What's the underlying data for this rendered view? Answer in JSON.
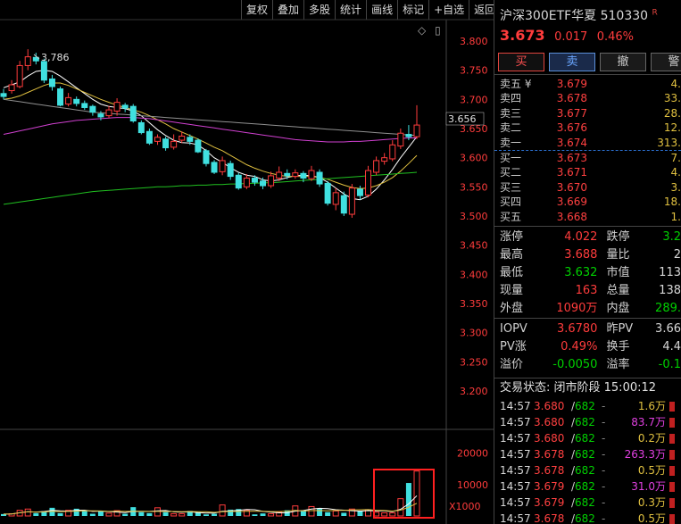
{
  "toolbar": {
    "buttons": [
      "复权",
      "叠加",
      "多股",
      "统计",
      "画线",
      "标记",
      "+自选",
      "返回"
    ]
  },
  "chart_icons": {
    "diamond": "◇",
    "panel": "▯"
  },
  "chart_labels": {
    "high_marker": "3,786",
    "current_price_tag": "3.656",
    "volume_axis_unit": "X1000"
  },
  "chart_data": {
    "type": "candlestick",
    "price_axis": {
      "ticks": [
        "3.800",
        "3.750",
        "3.700",
        "3.650",
        "3.600",
        "3.550",
        "3.500",
        "3.450",
        "3.400",
        "3.350",
        "3.300",
        "3.250",
        "3.200"
      ],
      "ylim": [
        3.2,
        3.8
      ]
    },
    "volume_axis": {
      "ticks": [
        "20000",
        "10000"
      ]
    },
    "candles": [
      {
        "o": 3.71,
        "c": 3.705,
        "h": 3.718,
        "l": 3.7
      },
      {
        "o": 3.715,
        "c": 3.725,
        "h": 3.733,
        "l": 3.71
      },
      {
        "o": 3.722,
        "c": 3.758,
        "h": 3.766,
        "l": 3.719
      },
      {
        "o": 3.758,
        "c": 3.773,
        "h": 3.786,
        "l": 3.75
      },
      {
        "o": 3.772,
        "c": 3.766,
        "h": 3.78,
        "l": 3.76
      },
      {
        "o": 3.765,
        "c": 3.733,
        "h": 3.77,
        "l": 3.728
      },
      {
        "o": 3.735,
        "c": 3.722,
        "h": 3.742,
        "l": 3.715
      },
      {
        "o": 3.718,
        "c": 3.69,
        "h": 3.722,
        "l": 3.688
      },
      {
        "o": 3.692,
        "c": 3.703,
        "h": 3.711,
        "l": 3.688
      },
      {
        "o": 3.7,
        "c": 3.693,
        "h": 3.705,
        "l": 3.688
      },
      {
        "o": 3.693,
        "c": 3.686,
        "h": 3.698,
        "l": 3.682
      },
      {
        "o": 3.688,
        "c": 3.678,
        "h": 3.691,
        "l": 3.672
      },
      {
        "o": 3.675,
        "c": 3.67,
        "h": 3.68,
        "l": 3.664
      },
      {
        "o": 3.672,
        "c": 3.682,
        "h": 3.689,
        "l": 3.668
      },
      {
        "o": 3.68,
        "c": 3.695,
        "h": 3.702,
        "l": 3.672
      },
      {
        "o": 3.69,
        "c": 3.685,
        "h": 3.694,
        "l": 3.678
      },
      {
        "o": 3.688,
        "c": 3.663,
        "h": 3.692,
        "l": 3.66
      },
      {
        "o": 3.66,
        "c": 3.643,
        "h": 3.664,
        "l": 3.64
      },
      {
        "o": 3.645,
        "c": 3.625,
        "h": 3.65,
        "l": 3.622
      },
      {
        "o": 3.628,
        "c": 3.635,
        "h": 3.64,
        "l": 3.622
      },
      {
        "o": 3.632,
        "c": 3.617,
        "h": 3.636,
        "l": 3.612
      },
      {
        "o": 3.618,
        "c": 3.628,
        "h": 3.64,
        "l": 3.614
      },
      {
        "o": 3.63,
        "c": 3.637,
        "h": 3.645,
        "l": 3.625
      },
      {
        "o": 3.635,
        "c": 3.628,
        "h": 3.64,
        "l": 3.622
      },
      {
        "o": 3.63,
        "c": 3.61,
        "h": 3.633,
        "l": 3.608
      },
      {
        "o": 3.612,
        "c": 3.59,
        "h": 3.615,
        "l": 3.585
      },
      {
        "o": 3.592,
        "c": 3.575,
        "h": 3.596,
        "l": 3.572
      },
      {
        "o": 3.576,
        "c": 3.595,
        "h": 3.602,
        "l": 3.57
      },
      {
        "o": 3.59,
        "c": 3.568,
        "h": 3.595,
        "l": 3.562
      },
      {
        "o": 3.57,
        "c": 3.548,
        "h": 3.574,
        "l": 3.545
      },
      {
        "o": 3.55,
        "c": 3.565,
        "h": 3.572,
        "l": 3.546
      },
      {
        "o": 3.565,
        "c": 3.558,
        "h": 3.57,
        "l": 3.552
      },
      {
        "o": 3.56,
        "c": 3.552,
        "h": 3.566,
        "l": 3.546
      },
      {
        "o": 3.552,
        "c": 3.569,
        "h": 3.576,
        "l": 3.548
      },
      {
        "o": 3.565,
        "c": 3.575,
        "h": 3.585,
        "l": 3.56
      },
      {
        "o": 3.573,
        "c": 3.569,
        "h": 3.58,
        "l": 3.563
      },
      {
        "o": 3.568,
        "c": 3.574,
        "h": 3.58,
        "l": 3.564
      },
      {
        "o": 3.573,
        "c": 3.565,
        "h": 3.577,
        "l": 3.558
      },
      {
        "o": 3.564,
        "c": 3.578,
        "h": 3.586,
        "l": 3.56
      },
      {
        "o": 3.575,
        "c": 3.555,
        "h": 3.58,
        "l": 3.55
      },
      {
        "o": 3.556,
        "c": 3.522,
        "h": 3.56,
        "l": 3.518
      },
      {
        "o": 3.52,
        "c": 3.54,
        "h": 3.548,
        "l": 3.51
      },
      {
        "o": 3.535,
        "c": 3.505,
        "h": 3.542,
        "l": 3.5
      },
      {
        "o": 3.503,
        "c": 3.548,
        "h": 3.555,
        "l": 3.497
      },
      {
        "o": 3.546,
        "c": 3.535,
        "h": 3.552,
        "l": 3.528
      },
      {
        "o": 3.536,
        "c": 3.578,
        "h": 3.586,
        "l": 3.532
      },
      {
        "o": 3.575,
        "c": 3.595,
        "h": 3.602,
        "l": 3.57
      },
      {
        "o": 3.594,
        "c": 3.6,
        "h": 3.608,
        "l": 3.588
      },
      {
        "o": 3.598,
        "c": 3.622,
        "h": 3.63,
        "l": 3.594
      },
      {
        "o": 3.62,
        "c": 3.642,
        "h": 3.65,
        "l": 3.615
      },
      {
        "o": 3.64,
        "c": 3.636,
        "h": 3.656,
        "l": 3.63
      },
      {
        "o": 3.636,
        "c": 3.656,
        "h": 3.69,
        "l": 3.632
      }
    ],
    "volumes": [
      600,
      700,
      1800,
      2200,
      900,
      1500,
      2600,
      900,
      1800,
      2300,
      1600,
      700,
      1400,
      900,
      1700,
      700,
      2800,
      1200,
      900,
      2600,
      1200,
      700,
      700,
      1600,
      1200,
      500,
      700,
      3500,
      2000,
      2200,
      1800,
      500,
      800,
      700,
      1200,
      1800,
      3200,
      1800,
      3000,
      2400,
      1200,
      1600,
      1000,
      2200,
      1700,
      2000,
      1200,
      1000,
      1000,
      5500,
      10500,
      14300
    ],
    "ma_series": [
      {
        "color": "#ffffff",
        "values": [
          3.72,
          3.725,
          3.73,
          3.74,
          3.748,
          3.75,
          3.748,
          3.74,
          3.73,
          3.72,
          3.71,
          3.7,
          3.692,
          3.688,
          3.686,
          3.684,
          3.68,
          3.672,
          3.66,
          3.648,
          3.638,
          3.63,
          3.626,
          3.625,
          3.622,
          3.612,
          3.6,
          3.592,
          3.583,
          3.575,
          3.57,
          3.568,
          3.562,
          3.56,
          3.562,
          3.566,
          3.569,
          3.57,
          3.569,
          3.566,
          3.558,
          3.548,
          3.538,
          3.53,
          3.528,
          3.534,
          3.546,
          3.562,
          3.58,
          3.6,
          3.618,
          3.636
        ]
      },
      {
        "color": "#e0c040",
        "values": [
          3.7,
          3.702,
          3.706,
          3.712,
          3.718,
          3.724,
          3.728,
          3.728,
          3.724,
          3.718,
          3.712,
          3.706,
          3.7,
          3.695,
          3.69,
          3.686,
          3.682,
          3.678,
          3.672,
          3.665,
          3.658,
          3.65,
          3.644,
          3.638,
          3.632,
          3.625,
          3.618,
          3.612,
          3.604,
          3.596,
          3.588,
          3.582,
          3.577,
          3.573,
          3.57,
          3.568,
          3.568,
          3.568,
          3.568,
          3.566,
          3.563,
          3.558,
          3.553,
          3.549,
          3.547,
          3.548,
          3.552,
          3.558,
          3.566,
          3.577,
          3.59,
          3.604
        ]
      },
      {
        "color": "#d040d0",
        "values": [
          3.64,
          3.643,
          3.646,
          3.649,
          3.652,
          3.655,
          3.658,
          3.66,
          3.662,
          3.664,
          3.665,
          3.666,
          3.667,
          3.668,
          3.669,
          3.669,
          3.669,
          3.668,
          3.667,
          3.665,
          3.663,
          3.661,
          3.659,
          3.657,
          3.655,
          3.653,
          3.651,
          3.649,
          3.647,
          3.645,
          3.643,
          3.641,
          3.639,
          3.637,
          3.635,
          3.633,
          3.631,
          3.63,
          3.629,
          3.628,
          3.627,
          3.627,
          3.627,
          3.628,
          3.628,
          3.629,
          3.63,
          3.631,
          3.632,
          3.633,
          3.634,
          3.634
        ]
      },
      {
        "color": "#20c020",
        "values": [
          3.52,
          3.522,
          3.524,
          3.526,
          3.528,
          3.53,
          3.532,
          3.534,
          3.536,
          3.538,
          3.54,
          3.542,
          3.543,
          3.544,
          3.545,
          3.546,
          3.547,
          3.548,
          3.549,
          3.55,
          3.55,
          3.551,
          3.552,
          3.552,
          3.553,
          3.553,
          3.554,
          3.554,
          3.555,
          3.555,
          3.556,
          3.556,
          3.557,
          3.557,
          3.558,
          3.559,
          3.56,
          3.561,
          3.562,
          3.563,
          3.564,
          3.565,
          3.566,
          3.567,
          3.568,
          3.569,
          3.57,
          3.571,
          3.572,
          3.573,
          3.574,
          3.575
        ]
      },
      {
        "color": "#909090",
        "values": [
          3.7,
          3.698,
          3.696,
          3.694,
          3.692,
          3.69,
          3.688,
          3.686,
          3.684,
          3.682,
          3.68,
          3.678,
          3.677,
          3.676,
          3.675,
          3.674,
          3.673,
          3.672,
          3.671,
          3.67,
          3.669,
          3.668,
          3.667,
          3.666,
          3.665,
          3.664,
          3.663,
          3.662,
          3.661,
          3.66,
          3.659,
          3.658,
          3.657,
          3.656,
          3.655,
          3.654,
          3.653,
          3.652,
          3.651,
          3.65,
          3.649,
          3.648,
          3.647,
          3.646,
          3.645,
          3.644,
          3.643,
          3.642,
          3.641,
          3.64,
          3.639,
          3.638
        ]
      }
    ]
  },
  "stock": {
    "name": "沪深300ETF华夏 510330",
    "badge": "R",
    "price": "3.673",
    "change": "0.017",
    "change_pct": "0.46%"
  },
  "trade_buttons": [
    "买",
    "卖",
    "撤",
    "警"
  ],
  "asks": [
    {
      "label": "卖五 ¥",
      "price": "3.679",
      "vol": "4."
    },
    {
      "label": "卖四",
      "price": "3.678",
      "vol": "33."
    },
    {
      "label": "卖三",
      "price": "3.677",
      "vol": "28."
    },
    {
      "label": "卖二",
      "price": "3.676",
      "vol": "12."
    },
    {
      "label": "卖一",
      "price": "3.674",
      "vol": "313."
    }
  ],
  "bids": [
    {
      "label": "买一",
      "price": "3.673",
      "vol": "7."
    },
    {
      "label": "买二",
      "price": "3.671",
      "vol": "4."
    },
    {
      "label": "买三",
      "price": "3.670",
      "vol": "3."
    },
    {
      "label": "买四",
      "price": "3.669",
      "vol": "18."
    },
    {
      "label": "买五",
      "price": "3.668",
      "vol": "1."
    }
  ],
  "stats1": [
    {
      "k1": "涨停",
      "v1": "4.022",
      "c1": "red",
      "k2": "跌停",
      "v2": "3.2",
      "c2": "green"
    },
    {
      "k1": "最高",
      "v1": "3.688",
      "c1": "red",
      "k2": "量比",
      "v2": "2",
      "c2": "white"
    },
    {
      "k1": "最低",
      "v1": "3.632",
      "c1": "green",
      "k2": "市值",
      "v2": "113",
      "c2": "white"
    },
    {
      "k1": "现量",
      "v1": "163",
      "c1": "red",
      "k2": "总量",
      "v2": "138",
      "c2": "white"
    },
    {
      "k1": "外盘",
      "v1": "1090万",
      "c1": "red",
      "k2": "内盘",
      "v2": "289.",
      "c2": "green"
    }
  ],
  "stats2": [
    {
      "k1": "IOPV",
      "v1": "3.6780",
      "c1": "red",
      "k2": "昨PV",
      "v2": "3.66",
      "c2": "white"
    },
    {
      "k1": "PV涨",
      "v1": "0.49%",
      "c1": "red",
      "k2": "换手",
      "v2": "4.4",
      "c2": "white"
    },
    {
      "k1": "溢价",
      "v1": "-0.0050",
      "c1": "green",
      "k2": "溢率",
      "v2": "-0.1",
      "c2": "green"
    }
  ],
  "status_line": "交易状态: 闭市阶段 15:00:12",
  "ticks": [
    {
      "time": "14:57",
      "price": "3.680",
      "num": "682",
      "vol": "1.6万",
      "vc": "yellow"
    },
    {
      "time": "14:57",
      "price": "3.680",
      "num": "682",
      "vol": "83.7万",
      "vc": "purple"
    },
    {
      "time": "14:57",
      "price": "3.680",
      "num": "682",
      "vol": "0.2万",
      "vc": "yellow"
    },
    {
      "time": "14:57",
      "price": "3.678",
      "num": "682",
      "vol": "263.3万",
      "vc": "purple"
    },
    {
      "time": "14:57",
      "price": "3.678",
      "num": "682",
      "vol": "0.5万",
      "vc": "yellow"
    },
    {
      "time": "14:57",
      "price": "3.679",
      "num": "682",
      "vol": "31.0万",
      "vc": "purple"
    },
    {
      "time": "14:57",
      "price": "3.679",
      "num": "682",
      "vol": "0.3万",
      "vc": "yellow"
    },
    {
      "time": "14:57",
      "price": "3.678",
      "num": "682",
      "vol": "0.5万",
      "vc": "yellow"
    }
  ]
}
